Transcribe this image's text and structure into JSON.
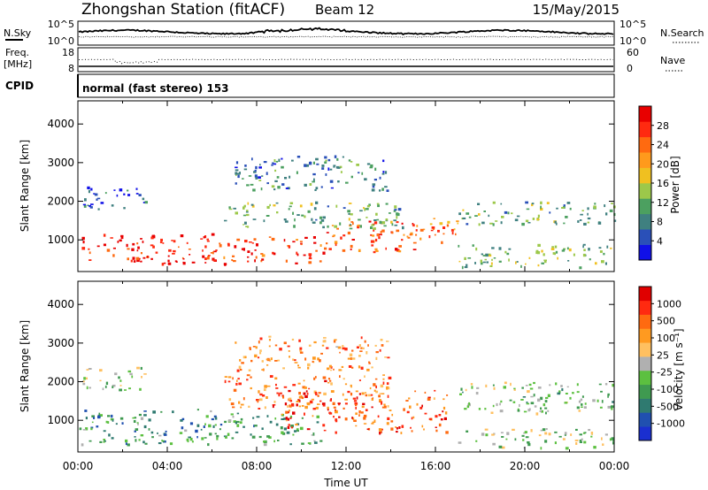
{
  "header": {
    "station": "Zhongshan Station (fitACF)",
    "beam": "Beam 12",
    "date": "15/May/2015"
  },
  "strip": {
    "nsky_label": "N.Sky",
    "nsky_ticks": [
      "10^5",
      "10^0"
    ],
    "nsearch_label": "N.Search",
    "nsearch_ticks": [
      "10^5",
      "10^0"
    ],
    "freq_label": "Freq.",
    "freq_unit": "[MHz]",
    "freq_ticks": [
      "18",
      "8"
    ],
    "nave_label": "Nave",
    "nave_ticks": [
      "60",
      "0"
    ],
    "cpid_label": "CPID",
    "cpid_value": "normal (fast stereo) 153"
  },
  "chart_data": [
    {
      "type": "heatmap",
      "name": "power-panel",
      "ylabel": "Slant Range [km]",
      "y_ticks": [
        "4000",
        "3000",
        "2000",
        "1000"
      ],
      "x_ticks": [
        "00:00",
        "04:00",
        "08:00",
        "12:00",
        "16:00",
        "20:00",
        "00:00"
      ],
      "ylim": [
        180,
        4600
      ],
      "xlim_hours": [
        0,
        24
      ],
      "colorbar": {
        "label": "Power [dB]",
        "ticks": [
          "28",
          "24",
          "20",
          "16",
          "12",
          "8",
          "4"
        ],
        "colors": [
          "#1010e8",
          "#2a50b8",
          "#3f8080",
          "#4ca060",
          "#9cc84a",
          "#f0c020",
          "#ff9a1c",
          "#ff6a10",
          "#ff2a10",
          "#e80000"
        ]
      },
      "echo_regions": [
        {
          "t0": 0.0,
          "t1": 6.0,
          "r0": 400,
          "r1": 1200,
          "level": 0.92
        },
        {
          "t0": 6.0,
          "t1": 11.0,
          "r0": 400,
          "r1": 1100,
          "level": 0.85
        },
        {
          "t0": 11.0,
          "t1": 15.5,
          "r0": 700,
          "r1": 1500,
          "level": 0.8
        },
        {
          "t0": 15.0,
          "t1": 17.0,
          "r0": 900,
          "r1": 1600,
          "level": 0.7
        },
        {
          "t0": 6.5,
          "t1": 14.5,
          "r0": 1300,
          "r1": 2000,
          "level": 0.35
        },
        {
          "t0": 7.0,
          "t1": 14.0,
          "r0": 2300,
          "r1": 3200,
          "level": 0.25
        },
        {
          "t0": 17.0,
          "t1": 24.0,
          "r0": 1400,
          "r1": 2000,
          "level": 0.35
        },
        {
          "t0": 17.0,
          "t1": 24.0,
          "r0": 300,
          "r1": 900,
          "level": 0.4
        },
        {
          "t0": 0.2,
          "t1": 3.0,
          "r0": 1800,
          "r1": 2400,
          "level": 0.15
        }
      ]
    },
    {
      "type": "heatmap",
      "name": "velocity-panel",
      "ylabel": "Slant Range [km]",
      "y_ticks": [
        "4000",
        "3000",
        "2000",
        "1000"
      ],
      "x_ticks": [
        "00:00",
        "04:00",
        "08:00",
        "12:00",
        "16:00",
        "20:00",
        "00:00"
      ],
      "xlabel": "Time UT",
      "ylim": [
        180,
        4600
      ],
      "xlim_hours": [
        0,
        24
      ],
      "colorbar": {
        "label": "Velocity [m s⁻¹]",
        "ticks": [
          "1000",
          "500",
          "100",
          "25",
          "-25",
          "-100",
          "-500",
          "-1000"
        ],
        "colors": [
          "#1a2fd0",
          "#2050b0",
          "#2f7a70",
          "#3f9a50",
          "#5cc040",
          "#b0b0b0",
          "#ffc060",
          "#ff9a20",
          "#ff6a10",
          "#ff2a10",
          "#e00000"
        ]
      },
      "echo_regions": [
        {
          "t0": 0.0,
          "t1": 6.5,
          "r0": 400,
          "r1": 1300,
          "level": 0.3
        },
        {
          "t0": 6.5,
          "t1": 11.0,
          "r0": 400,
          "r1": 1200,
          "level": 0.35
        },
        {
          "t0": 9.0,
          "t1": 16.5,
          "r0": 700,
          "r1": 1800,
          "level": 0.8
        },
        {
          "t0": 6.5,
          "t1": 14.0,
          "r0": 1300,
          "r1": 2200,
          "level": 0.75
        },
        {
          "t0": 7.0,
          "t1": 14.0,
          "r0": 2300,
          "r1": 3200,
          "level": 0.72
        },
        {
          "t0": 17.0,
          "t1": 24.0,
          "r0": 1200,
          "r1": 2000,
          "level": 0.42
        },
        {
          "t0": 17.0,
          "t1": 24.0,
          "r0": 300,
          "r1": 800,
          "level": 0.45
        },
        {
          "t0": 0.2,
          "t1": 3.0,
          "r0": 1800,
          "r1": 2400,
          "level": 0.45
        }
      ]
    }
  ]
}
